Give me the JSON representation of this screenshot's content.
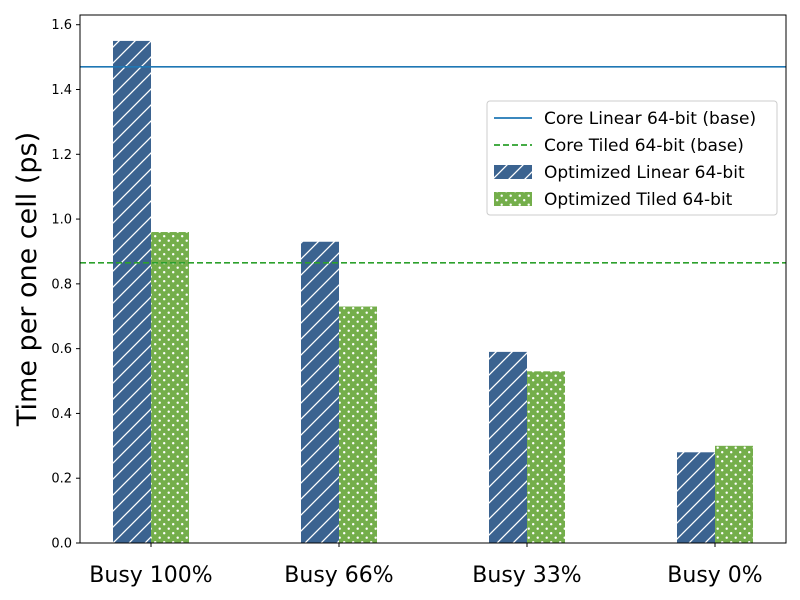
{
  "chart_data": {
    "type": "bar",
    "categories": [
      "Busy 100%",
      "Busy 66%",
      "Busy 33%",
      "Busy 0%"
    ],
    "series": [
      {
        "name": "Optimized Linear 64-bit",
        "values": [
          1.55,
          0.93,
          0.59,
          0.28
        ],
        "color": "#3b6390",
        "pattern": "hatch"
      },
      {
        "name": "Optimized Tiled 64-bit",
        "values": [
          0.96,
          0.73,
          0.53,
          0.3
        ],
        "color": "#74ae4b",
        "pattern": "dots"
      }
    ],
    "reference_lines": [
      {
        "name": "Core Linear 64-bit (base)",
        "value": 1.47,
        "color": "#1f77b4",
        "style": "solid"
      },
      {
        "name": "Core Tiled 64-bit (base)",
        "value": 0.865,
        "color": "#2ca02c",
        "style": "dashed"
      }
    ],
    "title": "",
    "xlabel": "",
    "ylabel": "Time per one cell (ps)",
    "ylim": [
      0,
      1.63
    ],
    "yticks": [
      "0.0",
      "0.2",
      "0.4",
      "0.6",
      "0.8",
      "1.0",
      "1.2",
      "1.4",
      "1.6"
    ],
    "grid": false,
    "legend_position": "upper-right"
  }
}
